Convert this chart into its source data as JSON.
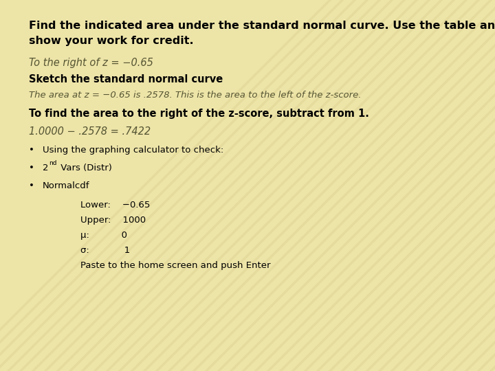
{
  "background_color": "#f0e68c",
  "background_light": "#f5eeaa",
  "background_dark": "#e8d878",
  "title_bold": "Find the indicated area under the standard normal curve. Use the table and\nshow your work for credit.",
  "line1_italic": "To the right of z = −0.65",
  "line2_bold": "Sketch the standard normal curve",
  "line3_italic": "The area at z = −0.65 is .2578. This is the area to the left of the z-score.",
  "line4_bold": "To find the area to the right of the z-score, subtract from 1.",
  "line5_italic": "1.0000 − .2578 = .7422",
  "bullet1": "Using the graphing calculator to check:",
  "bullet2_pre": "2",
  "bullet2_sup": "nd",
  "bullet2_post": " Vars (Distr)",
  "bullet3": "Normalcdf",
  "table_lower": "Lower:    −0.65",
  "table_upper": "Upper:    1000",
  "table_mu": "μ:           0",
  "table_sigma": "σ:            1",
  "table_paste": "Paste to the home screen and push Enter",
  "font_family": "DejaVu Sans",
  "title_fontsize": 11.5,
  "body_fontsize": 10.5,
  "small_fontsize": 9.5,
  "table_fontsize": 9.5
}
